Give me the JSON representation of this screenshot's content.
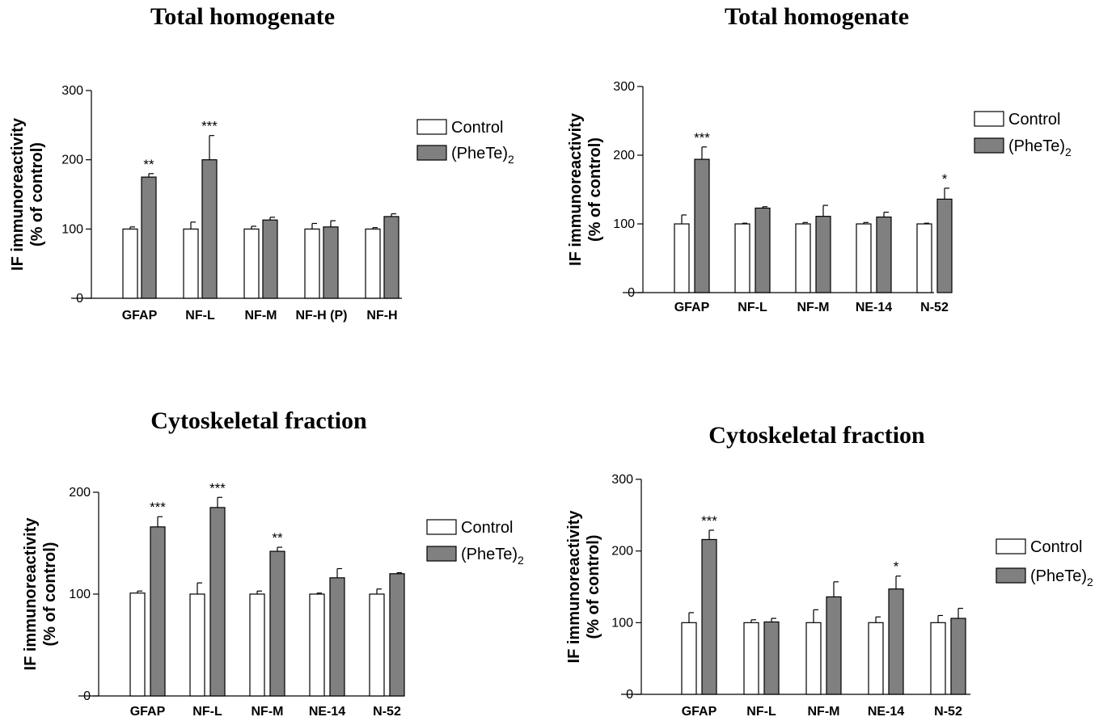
{
  "colors": {
    "control": "#ffffff",
    "treated": "#808080",
    "stroke": "#000000"
  },
  "legend": {
    "control": "Control",
    "treated_main": "(PheTe)",
    "treated_sub": "2"
  },
  "chart_data": [
    {
      "type": "bar",
      "title": "Total homogenate",
      "ylabel": [
        "IF immunoreactivity",
        "(% of control)"
      ],
      "ylim": [
        0,
        300
      ],
      "yticks": [
        0,
        100,
        200,
        300
      ],
      "categories": [
        "GFAP",
        "NF-L",
        "NF-M",
        "NF-H (P)",
        "NF-H"
      ],
      "series": [
        {
          "name": "Control",
          "values": [
            100,
            100,
            100,
            100,
            100
          ],
          "errors": [
            3,
            10,
            4,
            8,
            2
          ]
        },
        {
          "name": "(PheTe)2",
          "values": [
            175,
            200,
            113,
            103,
            118
          ],
          "errors": [
            5,
            35,
            4,
            9,
            4
          ]
        }
      ],
      "annotations": [
        "**",
        "***",
        "",
        "",
        ""
      ],
      "legend_position": "right"
    },
    {
      "type": "bar",
      "title": "Total homogenate",
      "ylabel": [
        "IF immunoreactivity",
        "(% of control)"
      ],
      "ylim": [
        0,
        300
      ],
      "yticks": [
        0,
        100,
        200,
        300
      ],
      "categories": [
        "GFAP",
        "NF-L",
        "NF-M",
        "NE-14",
        "N-52"
      ],
      "series": [
        {
          "name": "Control",
          "values": [
            100,
            100,
            100,
            100,
            100
          ],
          "errors": [
            13,
            1,
            2,
            2,
            1
          ]
        },
        {
          "name": "(PheTe)2",
          "values": [
            194,
            123,
            111,
            110,
            136
          ],
          "errors": [
            18,
            2,
            16,
            7,
            16
          ]
        }
      ],
      "annotations": [
        "***",
        "",
        "",
        "",
        "*"
      ],
      "legend_position": "right"
    },
    {
      "type": "bar",
      "title": "Cytoskeletal fraction",
      "ylabel": [
        "IF immunoreactivity",
        "(% of control)"
      ],
      "ylim": [
        0,
        200
      ],
      "yticks": [
        0,
        100,
        200
      ],
      "categories": [
        "GFAP",
        "NF-L",
        "NF-M",
        "NE-14",
        "N-52"
      ],
      "series": [
        {
          "name": "Control",
          "values": [
            101,
            100,
            100,
            100,
            100
          ],
          "errors": [
            2,
            11,
            3,
            1,
            5
          ]
        },
        {
          "name": "(PheTe)2",
          "values": [
            166,
            185,
            142,
            116,
            120
          ],
          "errors": [
            10,
            10,
            4,
            9,
            1
          ]
        }
      ],
      "annotations": [
        "***",
        "***",
        "**",
        "",
        ""
      ],
      "legend_position": "right"
    },
    {
      "type": "bar",
      "title": "Cytoskeletal fraction",
      "ylabel": [
        "IF immunoreactivity",
        "(% of control)"
      ],
      "ylim": [
        0,
        300
      ],
      "yticks": [
        0,
        100,
        200,
        300
      ],
      "categories": [
        "GFAP",
        "NF-L",
        "NF-M",
        "NE-14",
        "N-52"
      ],
      "series": [
        {
          "name": "Control",
          "values": [
            100,
            100,
            100,
            100,
            100
          ],
          "errors": [
            14,
            4,
            18,
            8,
            10
          ]
        },
        {
          "name": "(PheTe)2",
          "values": [
            216,
            101,
            136,
            147,
            106
          ],
          "errors": [
            13,
            5,
            21,
            18,
            14
          ]
        }
      ],
      "annotations": [
        "***",
        "",
        "",
        "*",
        ""
      ],
      "legend_position": "right"
    }
  ]
}
